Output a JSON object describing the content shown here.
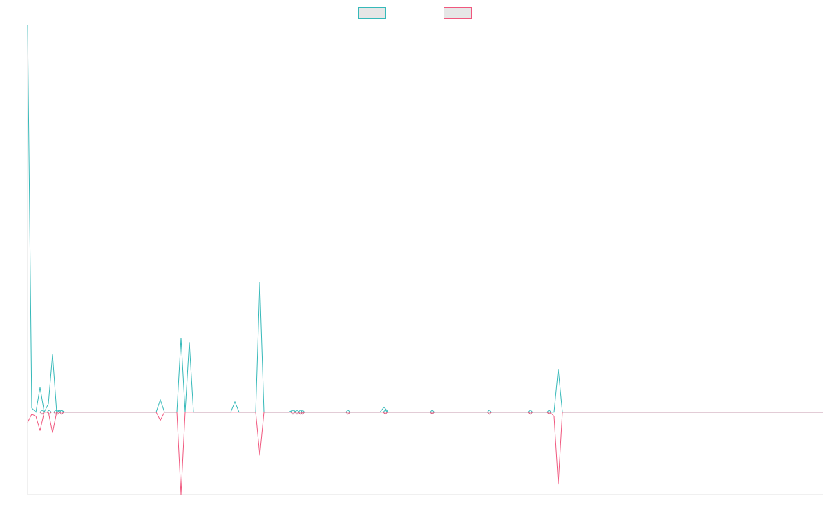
{
  "chart_data": {
    "type": "line",
    "x_count": 193,
    "ylim": [
      -20,
      94
    ],
    "baseline": 0,
    "grid": false,
    "legend_placement": "top-center",
    "series": [
      {
        "color": "#36b9b9",
        "points": [
          [
            0,
            94
          ],
          [
            1,
            1
          ],
          [
            2,
            0
          ],
          [
            3,
            6
          ],
          [
            4,
            0
          ],
          [
            5,
            2
          ],
          [
            6,
            14
          ],
          [
            7,
            0
          ],
          [
            8,
            0.5
          ],
          [
            9,
            0
          ],
          [
            31,
            0
          ],
          [
            32,
            3
          ],
          [
            33,
            0
          ],
          [
            36,
            0
          ],
          [
            37,
            18
          ],
          [
            38,
            0
          ],
          [
            39,
            17
          ],
          [
            40,
            0
          ],
          [
            49,
            0
          ],
          [
            50,
            2.5
          ],
          [
            51,
            0
          ],
          [
            55,
            0
          ],
          [
            56,
            31.5
          ],
          [
            57,
            0
          ],
          [
            63,
            0
          ],
          [
            64,
            0.5
          ],
          [
            65,
            0
          ],
          [
            85,
            0
          ],
          [
            86,
            1.2
          ],
          [
            87,
            0
          ],
          [
            192,
            0
          ],
          [
            127,
            0
          ],
          [
            128,
            10.5
          ],
          [
            129,
            0
          ]
        ]
      },
      {
        "color": "#f0577e",
        "points": [
          [
            0,
            -2.5
          ],
          [
            1,
            -0.5
          ],
          [
            2,
            -1
          ],
          [
            3,
            -4.5
          ],
          [
            4,
            0
          ],
          [
            5,
            0
          ],
          [
            6,
            -5
          ],
          [
            7,
            0
          ],
          [
            31,
            0
          ],
          [
            32,
            -2
          ],
          [
            33,
            0
          ],
          [
            36,
            0
          ],
          [
            37,
            -20
          ],
          [
            38,
            0
          ],
          [
            55,
            0
          ],
          [
            56,
            -10.5
          ],
          [
            57,
            0
          ],
          [
            126,
            0
          ],
          [
            127,
            -1
          ],
          [
            128,
            -17.5
          ],
          [
            129,
            0
          ],
          [
            192,
            0
          ]
        ]
      }
    ],
    "markers": [
      3.5,
      5.2,
      6.8,
      7.3,
      8.2,
      64.0,
      65.0,
      65.8,
      66.3,
      77.3,
      86.3,
      97.6,
      111.4,
      121.3,
      125.8
    ]
  }
}
